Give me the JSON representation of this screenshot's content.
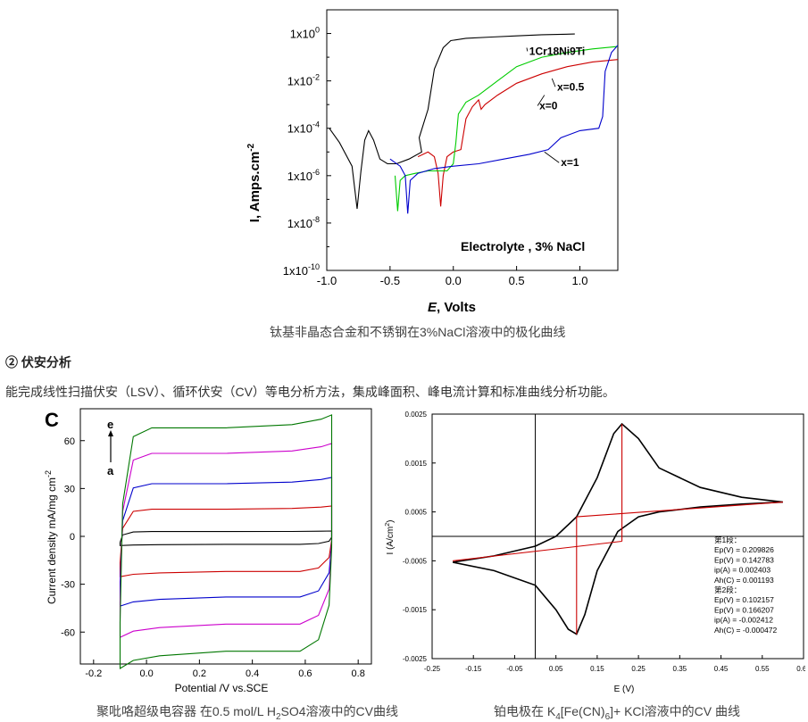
{
  "figure1": {
    "caption": "钛基非晶态合金和不锈钢在3%NaCl溶液中的极化曲线",
    "ylabel_main": "I, Amps.cm",
    "ylabel_sup": "-2",
    "xlabel_main": "E",
    "xlabel_rest": ", Volts",
    "annotation": "Electrolyte , 3% NaCl",
    "chart_data": {
      "type": "line",
      "xlim": [
        -1.0,
        1.3
      ],
      "ylim_log10": [
        -10,
        1
      ],
      "y_scale": "log",
      "x_ticks": [
        "-1.0",
        "-0.5",
        "0.0",
        "0.5",
        "1.0"
      ],
      "y_ticks": [
        {
          "base": "1x10",
          "exp": "0"
        },
        {
          "base": "1x10",
          "exp": "-2"
        },
        {
          "base": "1x10",
          "exp": "-4"
        },
        {
          "base": "1x10",
          "exp": "-6"
        },
        {
          "base": "1x10",
          "exp": "-8"
        },
        {
          "base": "1x10",
          "exp": "-10"
        }
      ],
      "series": [
        {
          "name": "1Cr18Ni9Ti",
          "color": "#000000",
          "points": [
            [
              -0.98,
              -4.0
            ],
            [
              -0.9,
              -4.6
            ],
            [
              -0.8,
              -5.6
            ],
            [
              -0.76,
              -7.4
            ],
            [
              -0.73,
              -5.8
            ],
            [
              -0.7,
              -4.5
            ],
            [
              -0.67,
              -4.1
            ],
            [
              -0.63,
              -4.5
            ],
            [
              -0.58,
              -5.3
            ],
            [
              -0.52,
              -5.5
            ],
            [
              -0.45,
              -5.5
            ],
            [
              -0.35,
              -5.3
            ],
            [
              -0.25,
              -5.0
            ],
            [
              -0.27,
              -4.4
            ],
            [
              -0.2,
              -3.2
            ],
            [
              -0.15,
              -1.5
            ],
            [
              -0.08,
              -0.6
            ],
            [
              -0.02,
              -0.3
            ],
            [
              0.1,
              -0.2
            ],
            [
              0.3,
              -0.15
            ],
            [
              0.5,
              -0.1
            ],
            [
              0.7,
              -0.05
            ],
            [
              0.96,
              -0.02
            ]
          ]
        },
        {
          "name": "x=0",
          "color": "#cc0000",
          "points": [
            [
              -0.28,
              -5.2
            ],
            [
              -0.2,
              -5.0
            ],
            [
              -0.15,
              -5.2
            ],
            [
              -0.12,
              -5.9
            ],
            [
              -0.1,
              -7.3
            ],
            [
              -0.08,
              -6.0
            ],
            [
              -0.05,
              -5.2
            ],
            [
              0.0,
              -5.0
            ],
            [
              0.06,
              -4.9
            ],
            [
              0.1,
              -3.6
            ],
            [
              0.15,
              -3.1
            ],
            [
              0.2,
              -2.8
            ],
            [
              0.22,
              -3.2
            ],
            [
              0.25,
              -3.0
            ],
            [
              0.35,
              -2.6
            ],
            [
              0.5,
              -2.1
            ],
            [
              0.7,
              -1.7
            ],
            [
              0.9,
              -1.4
            ],
            [
              1.1,
              -1.2
            ],
            [
              1.3,
              -1.1
            ]
          ]
        },
        {
          "name": "x=0.5",
          "color": "#00cc00",
          "points": [
            [
              -0.46,
              -6.0
            ],
            [
              -0.44,
              -7.5
            ],
            [
              -0.42,
              -6.2
            ],
            [
              -0.38,
              -6.0
            ],
            [
              -0.3,
              -5.9
            ],
            [
              -0.2,
              -5.8
            ],
            [
              -0.05,
              -5.8
            ],
            [
              0.0,
              -5.5
            ],
            [
              0.02,
              -4.6
            ],
            [
              0.04,
              -3.4
            ],
            [
              0.1,
              -2.9
            ],
            [
              0.2,
              -2.6
            ],
            [
              0.35,
              -2.0
            ],
            [
              0.5,
              -1.4
            ],
            [
              0.7,
              -1.0
            ],
            [
              0.9,
              -0.8
            ],
            [
              1.1,
              -0.65
            ],
            [
              1.3,
              -0.55
            ]
          ]
        },
        {
          "name": "x=1",
          "color": "#0000cc",
          "points": [
            [
              -0.5,
              -5.3
            ],
            [
              -0.42,
              -5.6
            ],
            [
              -0.38,
              -6.0
            ],
            [
              -0.36,
              -7.6
            ],
            [
              -0.34,
              -6.2
            ],
            [
              -0.28,
              -5.9
            ],
            [
              -0.15,
              -5.7
            ],
            [
              0.0,
              -5.6
            ],
            [
              0.2,
              -5.5
            ],
            [
              0.4,
              -5.3
            ],
            [
              0.6,
              -5.1
            ],
            [
              0.75,
              -4.9
            ],
            [
              0.85,
              -4.4
            ],
            [
              1.0,
              -4.1
            ],
            [
              1.15,
              -4.0
            ],
            [
              1.18,
              -3.5
            ],
            [
              1.2,
              -1.6
            ],
            [
              1.25,
              -0.8
            ],
            [
              1.3,
              -0.5
            ]
          ]
        }
      ],
      "labels": [
        "1Cr18Ni9Ti",
        "x=0.5",
        "x=0",
        "x=1"
      ]
    }
  },
  "section": {
    "heading": "② 伏安分析",
    "body": "能完成线性扫描伏安（LSV）、循环伏安（CV）等电分析方法，集成峰面积、峰电流计算和标准曲线分析功能。"
  },
  "figure2": {
    "panel_letter": "C",
    "ylabel": "Current density mA/mg cm",
    "ylabel_sup": "-2",
    "xlabel": "Potential /V vs.SCE",
    "caption_prefix": "聚吡咯超级电容器  在0.5 mol/L H",
    "caption_sub": "2",
    "caption_suffix": "SO4溶液中的CV曲线",
    "arrow_top": "e",
    "arrow_bottom": "a",
    "chart_data": {
      "type": "line",
      "xlim": [
        -0.25,
        0.85
      ],
      "ylim": [
        -80,
        80
      ],
      "x_ticks": [
        "-0.2",
        "0.0",
        "0.2",
        "0.4",
        "0.6",
        "0.8"
      ],
      "y_ticks": [
        "60",
        "30",
        "0",
        "-30",
        "-60"
      ],
      "series": [
        {
          "name": "a",
          "color": "#000000",
          "upper": 3,
          "lower": -5
        },
        {
          "name": "b",
          "color": "#cc0000",
          "upper": 17,
          "lower": -22
        },
        {
          "name": "c",
          "color": "#0000cc",
          "upper": 33,
          "lower": -38
        },
        {
          "name": "d",
          "color": "#cc00cc",
          "upper": 52,
          "lower": -55
        },
        {
          "name": "e",
          "color": "#007700",
          "upper": 68,
          "lower": -72
        }
      ]
    }
  },
  "figure3": {
    "ylabel": "I (A/cm",
    "ylabel_sup": "2",
    "ylabel_end": ")",
    "xlabel": "E (V)",
    "caption_prefix": "铂电极在 K",
    "caption_sub1": "4",
    "caption_mid": "[Fe(CN)",
    "caption_sub2": "6",
    "caption_suffix": "]+ KCl溶液中的CV 曲线",
    "results": [
      "第1段：",
      "Ep(V) = 0.209826",
      "Ep(V) = 0.142783",
      "ip(A) = 0.002403",
      "Ah(C) = 0.001193",
      "第2段：",
      "Ep(V) = 0.102157",
      "Ep(V) = 0.166207",
      "ip(A) = -0.002412",
      "Ah(C) = -0.000472"
    ],
    "chart_data": {
      "type": "line",
      "xlim": [
        -0.25,
        0.65
      ],
      "ylim": [
        -0.0025,
        0.0025
      ],
      "x_ticks": [
        "-0.25",
        "-0.15",
        "-0.05",
        "0.05",
        "0.15",
        "0.25",
        "0.35",
        "0.45",
        "0.55",
        "0.65"
      ],
      "y_ticks": [
        "0.0025",
        "0.0015",
        "0.0005",
        "-0.0005",
        "-0.0015",
        "-0.0025"
      ],
      "series": [
        {
          "name": "CV",
          "color": "#000000",
          "points": [
            [
              -0.2,
              -0.00053
            ],
            [
              -0.1,
              -0.0004
            ],
            [
              0.0,
              -0.0002
            ],
            [
              0.05,
              0.0
            ],
            [
              0.1,
              0.0004
            ],
            [
              0.15,
              0.0012
            ],
            [
              0.19,
              0.0021
            ],
            [
              0.21,
              0.0023
            ],
            [
              0.25,
              0.002
            ],
            [
              0.3,
              0.0014
            ],
            [
              0.4,
              0.001
            ],
            [
              0.5,
              0.0008
            ],
            [
              0.6,
              0.0007
            ],
            [
              0.6,
              0.0007
            ],
            [
              0.5,
              0.00066
            ],
            [
              0.4,
              0.0006
            ],
            [
              0.3,
              0.0005
            ],
            [
              0.25,
              0.0004
            ],
            [
              0.2,
              0.0001
            ],
            [
              0.15,
              -0.0007
            ],
            [
              0.12,
              -0.0016
            ],
            [
              0.1,
              -0.002
            ],
            [
              0.08,
              -0.0019
            ],
            [
              0.05,
              -0.0015
            ],
            [
              0.0,
              -0.001
            ],
            [
              -0.1,
              -0.0007
            ],
            [
              -0.2,
              -0.00053
            ]
          ]
        },
        {
          "name": "baseline1",
          "color": "#cc0000",
          "points": [
            [
              0.1,
              0.0004
            ],
            [
              0.6,
              0.0007
            ]
          ]
        },
        {
          "name": "baseline2",
          "color": "#cc0000",
          "points": [
            [
              -0.2,
              -0.0005
            ],
            [
              0.21,
              -0.0001
            ]
          ]
        },
        {
          "name": "peak_anodic",
          "color": "#cc0000",
          "points": [
            [
              0.21,
              -0.0001
            ],
            [
              0.21,
              0.0023
            ]
          ]
        },
        {
          "name": "peak_cathodic",
          "color": "#cc0000",
          "points": [
            [
              0.1,
              0.0004
            ],
            [
              0.1,
              -0.002
            ]
          ]
        }
      ]
    }
  }
}
